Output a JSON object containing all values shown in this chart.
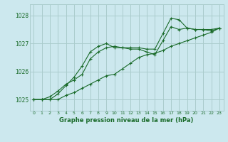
{
  "title": "Graphe pression niveau de la mer (hPa)",
  "bg_color": "#cce8ee",
  "grid_color": "#aacccc",
  "line_color": "#1a6b2a",
  "marker_color": "#1a6b2a",
  "xlim": [
    -0.5,
    23.5
  ],
  "ylim": [
    1024.6,
    1028.4
  ],
  "yticks": [
    1025,
    1026,
    1027,
    1028
  ],
  "xticks": [
    0,
    1,
    2,
    3,
    4,
    5,
    6,
    7,
    8,
    9,
    10,
    11,
    12,
    13,
    14,
    15,
    16,
    17,
    18,
    19,
    20,
    21,
    22,
    23
  ],
  "series": [
    [
      1025.0,
      1025.0,
      1025.0,
      1025.2,
      1025.5,
      1025.8,
      1026.2,
      1026.7,
      1026.9,
      1027.0,
      1026.85,
      1026.85,
      1026.8,
      1026.8,
      1026.7,
      1026.6,
      1027.1,
      1027.6,
      1027.5,
      1027.55,
      1027.5,
      1027.5,
      1027.5,
      1027.55
    ],
    [
      1025.0,
      1025.0,
      1025.1,
      1025.3,
      1025.55,
      1025.7,
      1025.9,
      1026.45,
      1026.7,
      1026.85,
      1026.9,
      1026.85,
      1026.85,
      1026.85,
      1026.8,
      1026.8,
      1027.35,
      1027.9,
      1027.85,
      1027.55,
      1027.5,
      1027.5,
      1027.45,
      1027.55
    ],
    [
      1025.0,
      1025.0,
      1025.0,
      1025.0,
      1025.15,
      1025.25,
      1025.4,
      1025.55,
      1025.7,
      1025.85,
      1025.9,
      1026.1,
      1026.3,
      1026.5,
      1026.6,
      1026.65,
      1026.75,
      1026.9,
      1027.0,
      1027.1,
      1027.2,
      1027.3,
      1027.4,
      1027.55
    ]
  ]
}
